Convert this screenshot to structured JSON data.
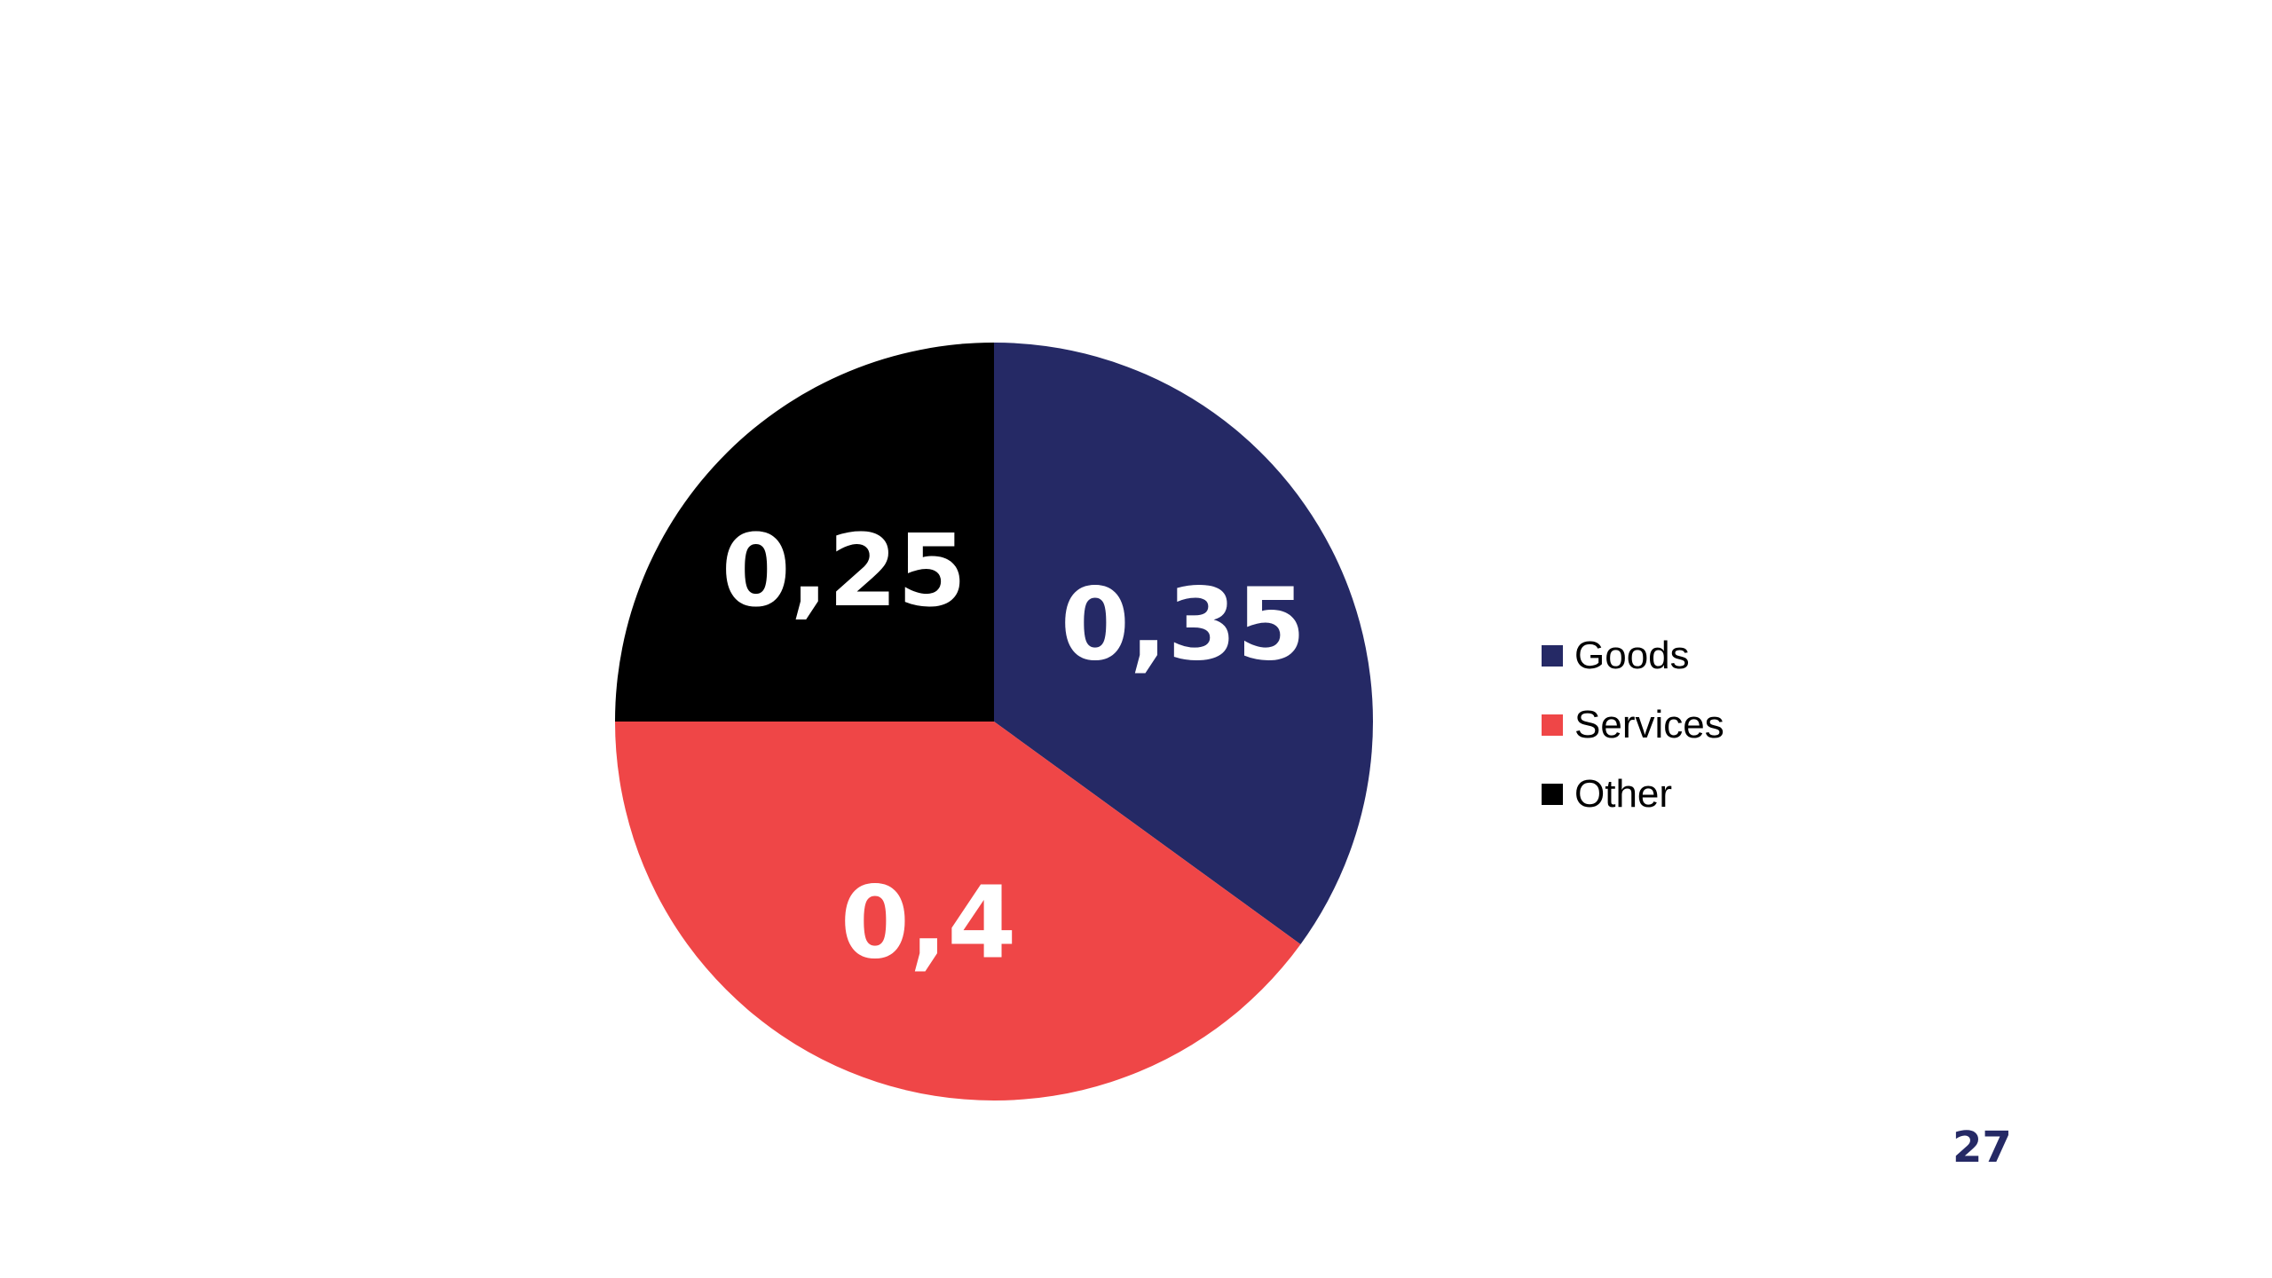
{
  "slide": {
    "page_number": "27"
  },
  "chart_data": {
    "type": "pie",
    "title": "",
    "categories": [
      "Goods",
      "Services",
      "Other"
    ],
    "values": [
      0.35,
      0.4,
      0.25
    ],
    "value_labels": [
      "0,35",
      "0,4",
      "0,25"
    ],
    "colors": [
      "#252965",
      "#ef4647",
      "#000000"
    ],
    "start_angle_deg": 90,
    "direction": "clockwise",
    "legend": {
      "placement": "right",
      "entries": [
        {
          "label": "Goods",
          "color": "#252965"
        },
        {
          "label": "Services",
          "color": "#ef4647"
        },
        {
          "label": "Other",
          "color": "#000000"
        }
      ]
    }
  }
}
